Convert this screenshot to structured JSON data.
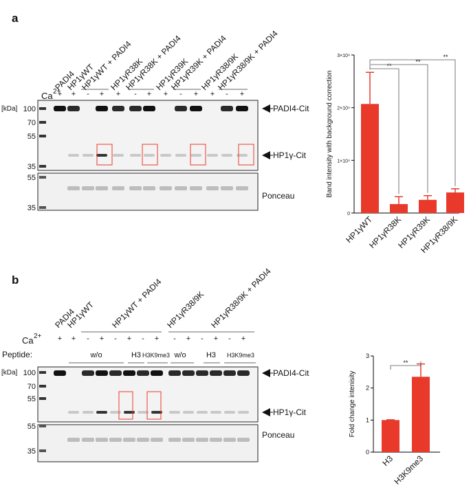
{
  "panels": [
    {
      "letter": "a",
      "lanes": [
        "PADI4",
        "HP1γWT",
        "HP1γWT + PADI4",
        "HP1γR38K",
        "HP1γR38K + PADI4",
        "HP1γR39K",
        "HP1γR39K + PADI4",
        "HP1γR38/9K",
        "HP1γR38/9K + PADI4"
      ],
      "ca_label": "Ca",
      "ca_sup": "2+",
      "ca_signs": [
        "+",
        "+",
        "-",
        "+",
        "+",
        "-",
        "+",
        "+",
        "-",
        "+",
        "+",
        "-",
        "+"
      ],
      "kda_unit": "[kDa]",
      "markers": [
        "100",
        "70",
        "55",
        "35"
      ],
      "ponceau_markers": [
        "55",
        "35"
      ],
      "band_labels": [
        "PADI4-Cit",
        "HP1γ-Cit"
      ],
      "ponceau_label": "Ponceau"
    },
    {
      "letter": "b",
      "lanes": [
        "PADI4",
        "HP1γWT",
        "HP1γWT + PADI4",
        "HP1γR38/9K",
        "HP1γR38/9K + PADI4"
      ],
      "ca_label": "Ca",
      "ca_sup": "2+",
      "ca_signs": [
        "+",
        "+",
        "-",
        "+",
        "-",
        "+",
        "-",
        "+",
        "-",
        "+",
        "-",
        "+",
        "-",
        "+"
      ],
      "peptide_label": "Peptide:",
      "peptides": [
        "w/o",
        "H3",
        "H3K9me3",
        "w/o",
        "H3",
        "H3K9me3"
      ],
      "kda_unit": "[kDa]",
      "markers": [
        "100",
        "70",
        "55"
      ],
      "ponceau_markers": [
        "55",
        "35"
      ],
      "band_labels": [
        "PADI4-Cit",
        "HP1γ-Cit"
      ],
      "ponceau_label": "Ponceau"
    }
  ],
  "chart_data": [
    {
      "type": "bar",
      "y_label": "Band intensity with background correction",
      "categories": [
        "HP1γWT",
        "HP1γR38K",
        "HP1γR39K",
        "HP1γR38/9K"
      ],
      "values": [
        20700,
        1700,
        2500,
        3900
      ],
      "errors": [
        6000,
        1400,
        800,
        700
      ],
      "color": "#e8392b",
      "ylim": [
        0,
        30000
      ],
      "yticks": [
        0,
        {
          "value": 10000,
          "label": "1×10⁴"
        },
        {
          "value": 20000,
          "label": "2×10⁴"
        },
        {
          "value": 30000,
          "label": "3×10⁴"
        }
      ],
      "annotations": [
        "**",
        "**",
        "**"
      ]
    },
    {
      "type": "bar",
      "y_label": "Fold change intenisity",
      "categories": [
        "H3",
        "H3K9me3"
      ],
      "values": [
        1,
        2.35
      ],
      "errors": [
        0.01,
        0.4
      ],
      "color": "#e8392b",
      "ylim": [
        0,
        3
      ],
      "yticks": [
        0,
        1,
        2,
        3
      ],
      "annotations": [
        "**"
      ]
    }
  ]
}
